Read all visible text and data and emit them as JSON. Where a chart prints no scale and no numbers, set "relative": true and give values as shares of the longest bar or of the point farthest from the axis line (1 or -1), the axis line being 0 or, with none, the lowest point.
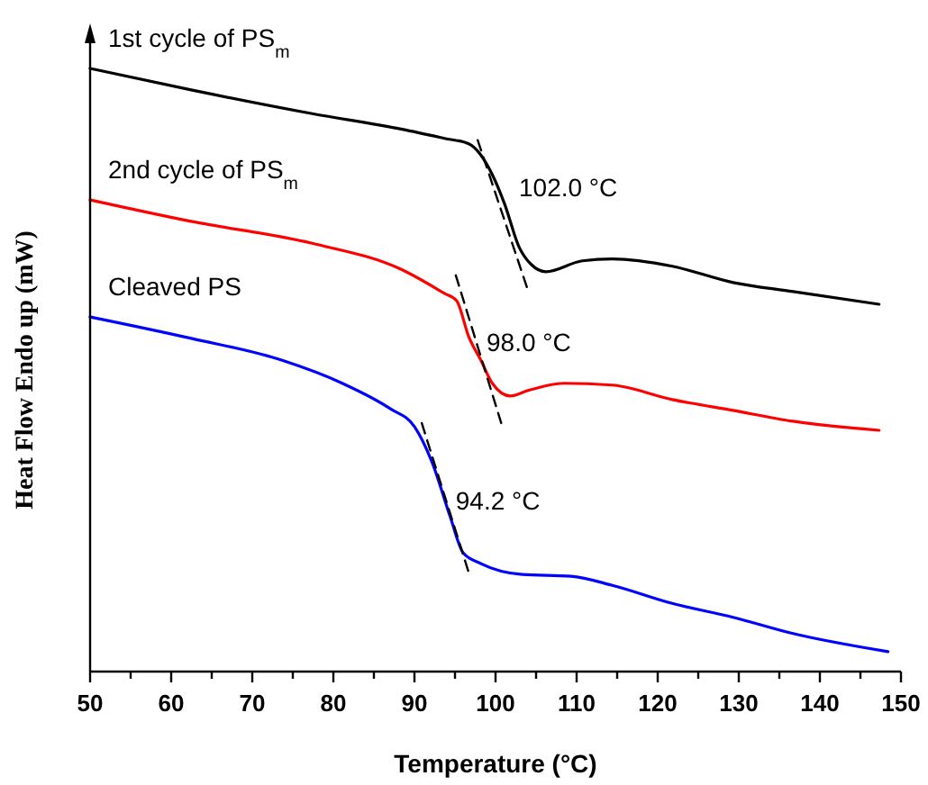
{
  "chart_data": {
    "type": "line",
    "relative": true,
    "xlabel": "Temperature (°C)",
    "ylabel": "Heat Flow Endo up (mW)",
    "xlim": [
      50,
      150
    ],
    "xticks": [
      50,
      {
        "value": 55,
        "label": null
      },
      60,
      {
        "value": 65,
        "label": null
      },
      70,
      {
        "value": 75,
        "label": null
      },
      80,
      {
        "value": 85,
        "label": null
      },
      90,
      {
        "value": 95,
        "label": null
      },
      100,
      {
        "value": 105,
        "label": null
      },
      110,
      {
        "value": 115,
        "label": null
      },
      120,
      {
        "value": 125,
        "label": null
      },
      130,
      {
        "value": 135,
        "label": null
      },
      140,
      {
        "value": 145,
        "label": null
      },
      150
    ],
    "grid": false,
    "series": [
      {
        "name": "1st cycle of PS$_{m}$",
        "color": "#000000",
        "x": [
          50,
          62.6,
          77.4,
          88.5,
          93.7,
          96.7,
          99.6,
          101.1,
          102.9,
          104.4,
          106.2,
          110.7,
          114.4,
          121.8,
          129.3,
          136.7,
          147.3
        ],
        "values": [
          1.0,
          0.964,
          0.925,
          0.899,
          0.884,
          0.875,
          0.824,
          0.776,
          0.704,
          0.675,
          0.663,
          0.681,
          0.684,
          0.672,
          0.645,
          0.63,
          0.609
        ]
      },
      {
        "name": "2nd cycle of PS$_{m}$",
        "color": "#ff0000",
        "x": [
          50,
          62.6,
          77.4,
          88.5,
          93.7,
          95.2,
          96.7,
          98.2,
          99.6,
          101.8,
          104,
          108.4,
          114.4,
          121.8,
          129.3,
          136.7,
          147.3
        ],
        "values": [
          0.782,
          0.746,
          0.71,
          0.666,
          0.627,
          0.615,
          0.555,
          0.516,
          0.478,
          0.457,
          0.466,
          0.478,
          0.475,
          0.451,
          0.433,
          0.415,
          0.4
        ]
      },
      {
        "name": "Cleaved PS",
        "color": "#0000ff",
        "x": [
          50,
          62.6,
          73.7,
          81.1,
          87,
          90,
          92.2,
          94.4,
          96,
          98.2,
          103.3,
          109.3,
          114.4,
          121.8,
          129.3,
          136.7,
          148.4
        ],
        "values": [
          0.588,
          0.552,
          0.516,
          0.478,
          0.436,
          0.406,
          0.346,
          0.257,
          0.197,
          0.179,
          0.161,
          0.158,
          0.143,
          0.113,
          0.09,
          0.063,
          0.033
        ]
      },
      {
        "type": "line",
        "color": "#000000",
        "line_style": "dashed",
        "x": [
          97.8,
          103.9
        ],
        "values": [
          0.881,
          0.636
        ]
      },
      {
        "type": "line",
        "color": "#000000",
        "line_style": "dashed",
        "x": [
          95.1,
          100.7
        ],
        "values": [
          0.657,
          0.412
        ]
      },
      {
        "type": "line",
        "color": "#000000",
        "line_style": "dashed",
        "x": [
          90.9,
          96.7
        ],
        "values": [
          0.412,
          0.164
        ]
      }
    ],
    "annotations": [
      {
        "text": "102.0 °C",
        "x": 102.0,
        "y": 0.776
      },
      {
        "text": "98.0 °C",
        "x": 98.0,
        "y": 0.52
      },
      {
        "text": "94.2 °C",
        "x": 94.2,
        "y": 0.257
      }
    ]
  }
}
